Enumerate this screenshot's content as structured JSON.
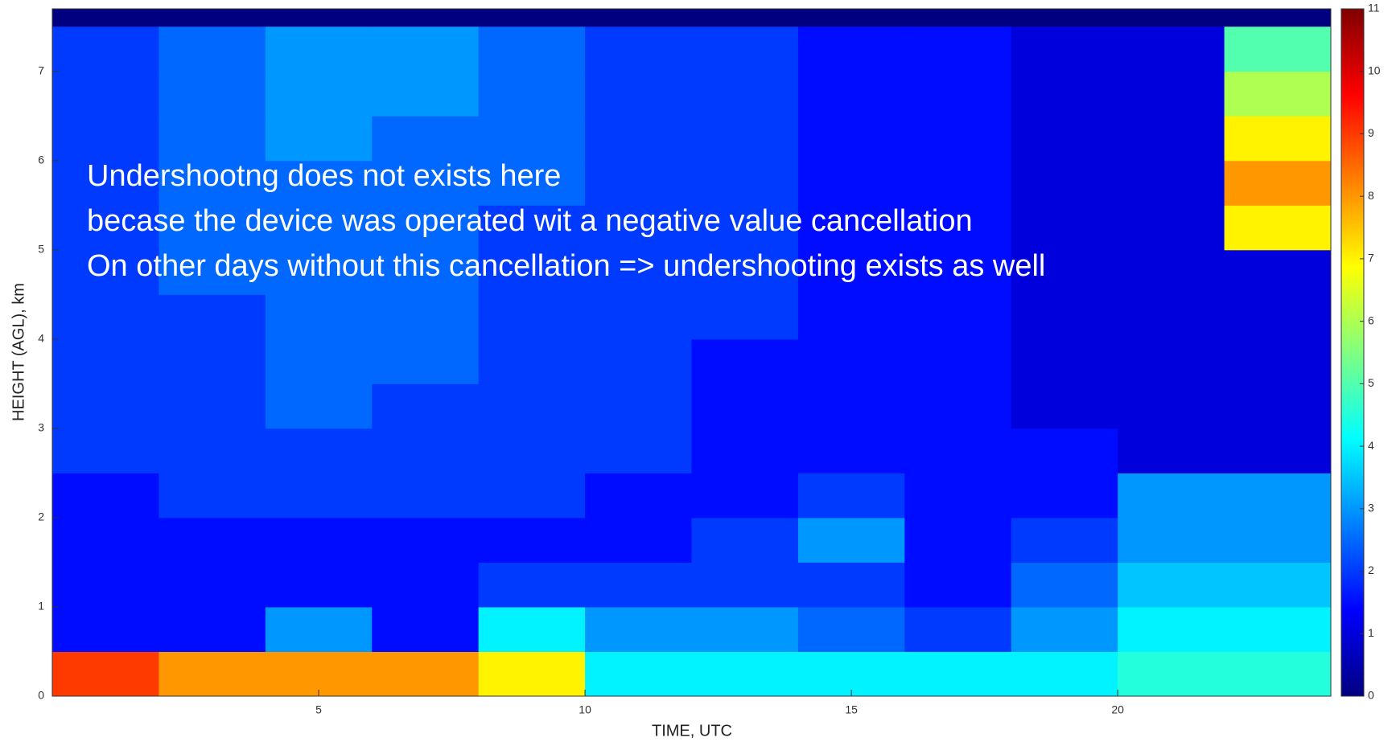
{
  "chart_data": {
    "type": "heatmap",
    "xlabel": "TIME, UTC",
    "ylabel": "HEIGHT (AGL), km",
    "x_edges": [
      0,
      2,
      4,
      6,
      8,
      10,
      12,
      14,
      16,
      18,
      20,
      22,
      24
    ],
    "y_edges": [
      0,
      0.5,
      1,
      1.5,
      2,
      2.5,
      3,
      3.5,
      4,
      4.5,
      5,
      5.5,
      6,
      6.5,
      7,
      7.5
    ],
    "z": [
      [
        9,
        8,
        8,
        8,
        7,
        4,
        4,
        4,
        4,
        4,
        4.5,
        4.5
      ],
      [
        1.5,
        1.5,
        3,
        1.5,
        4,
        3,
        3,
        2.5,
        2,
        3,
        4,
        4
      ],
      [
        1.5,
        1.5,
        1.5,
        1.5,
        2,
        2,
        2,
        2,
        1.5,
        2.5,
        3.5,
        3.5
      ],
      [
        1.5,
        1.5,
        1.5,
        1.5,
        1.5,
        1.5,
        2,
        3,
        1.5,
        2,
        3,
        3
      ],
      [
        1.5,
        2,
        2,
        2,
        2,
        1.5,
        1.5,
        2,
        1.5,
        1.5,
        3,
        3
      ],
      [
        2,
        2,
        2,
        2,
        2,
        2,
        1.5,
        1.5,
        1.5,
        1.5,
        1,
        1
      ],
      [
        2,
        2,
        2.5,
        2,
        2,
        2,
        1.5,
        1.5,
        1.5,
        1,
        1,
        1
      ],
      [
        2,
        2,
        2.5,
        2.5,
        2,
        2,
        1.5,
        1.5,
        1.5,
        1,
        1,
        1
      ],
      [
        2,
        2,
        2.5,
        2.5,
        2,
        2,
        2,
        1.5,
        1.5,
        1,
        1,
        1
      ],
      [
        2,
        2.5,
        2.5,
        2.5,
        2,
        2,
        2,
        1.5,
        1.5,
        1,
        1,
        1
      ],
      [
        2,
        2.5,
        2.5,
        2.5,
        2,
        2,
        2,
        1.5,
        1.5,
        1,
        1,
        7
      ],
      [
        2,
        2.5,
        2.5,
        2.5,
        2.5,
        2,
        2,
        1.5,
        1.5,
        1,
        1,
        8
      ],
      [
        2,
        2.5,
        3,
        2.5,
        2.5,
        2,
        2,
        1.5,
        1.5,
        1,
        1,
        7
      ],
      [
        2,
        2.5,
        3,
        3,
        2.5,
        2,
        2,
        1.5,
        1.5,
        1,
        1,
        6
      ],
      [
        2,
        2.5,
        3,
        3,
        2.5,
        2,
        2,
        1.5,
        1.5,
        1,
        1,
        5
      ]
    ],
    "xlim": [
      0,
      24
    ],
    "xticks": [
      5,
      10,
      15,
      20
    ],
    "ylim": [
      0,
      7.7
    ],
    "yticks": [
      0,
      1,
      2,
      3,
      4,
      5,
      6,
      7
    ],
    "colormap": "jet",
    "colorbar": {
      "lim": [
        0,
        11
      ],
      "ticks": [
        0,
        1,
        2,
        3,
        4,
        5,
        6,
        7,
        8,
        9,
        10,
        11
      ]
    },
    "annotations": [
      "Undershootng does not exists here",
      "becase the device  was operated wit a negative value cancellation",
      "On other days without this cancellation => undershooting exists as well"
    ]
  }
}
